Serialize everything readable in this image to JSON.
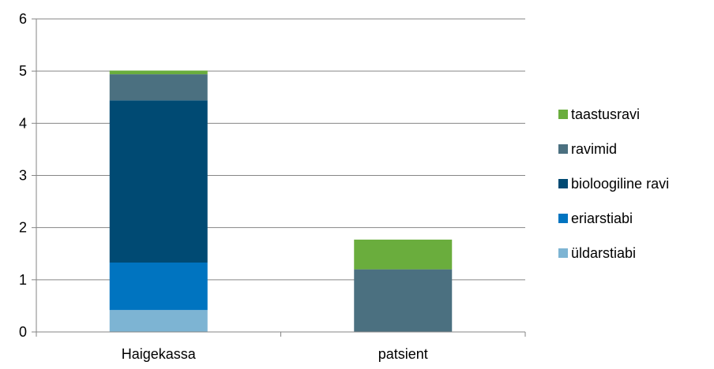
{
  "chart_data": {
    "type": "bar",
    "stacked": true,
    "categories": [
      "Haigekassa",
      "patsient"
    ],
    "series": [
      {
        "name": "üldarstiabi",
        "values": [
          0.42,
          0
        ],
        "color": "#7db4d3"
      },
      {
        "name": "eriarstiabi",
        "values": [
          0.91,
          0
        ],
        "color": "#0074c0"
      },
      {
        "name": "bioloogiline ravi",
        "values": [
          3.11,
          0
        ],
        "color": "#004a73"
      },
      {
        "name": "ravimid",
        "values": [
          0.5,
          1.2
        ],
        "color": "#4b7080"
      },
      {
        "name": "taastusravi",
        "values": [
          0.07,
          0.57
        ],
        "color": "#6aad3d"
      }
    ],
    "yticks": [
      "0",
      "1",
      "2",
      "3",
      "4",
      "5",
      "6"
    ],
    "ylim": [
      0,
      6
    ],
    "grid": true,
    "legend_position": "right",
    "legend_order": [
      "taastusravi",
      "ravimid",
      "bioloogiline ravi",
      "eriarstiabi",
      "üldarstiabi"
    ]
  }
}
